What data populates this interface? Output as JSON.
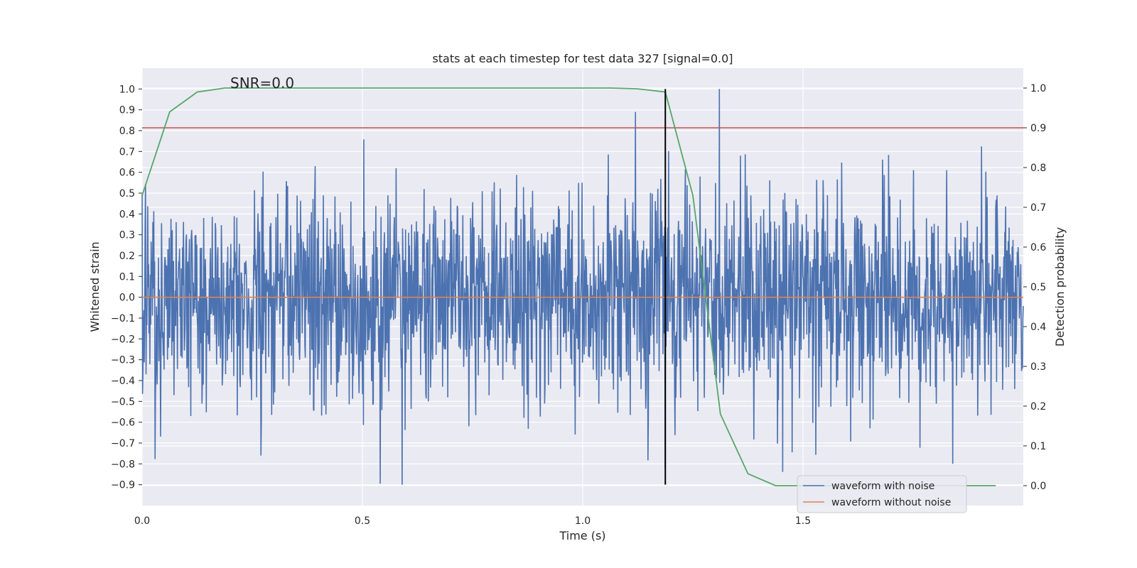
{
  "chart_data": {
    "type": "line",
    "title": "stats at each timestep for test data 327 [signal=0.0]",
    "xlabel": "Time (s)",
    "ylabel_left": "Whitened strain",
    "ylabel_right": "Detection probability",
    "xlim": [
      0.0,
      2.0
    ],
    "ylim_left": [
      -1.0,
      1.1
    ],
    "ylim_right": [
      -0.05,
      1.05
    ],
    "x_ticks": [
      "0.0",
      "0.5",
      "1.0",
      "1.5"
    ],
    "x_tick_values": [
      0.0,
      0.5,
      1.0,
      1.5
    ],
    "y_left_ticks": [
      "1.0",
      "0.9",
      "0.8",
      "0.7",
      "0.6",
      "0.5",
      "0.4",
      "0.3",
      "0.2",
      "0.1",
      "0.0",
      "−0.1",
      "−0.2",
      "−0.3",
      "−0.4",
      "−0.5",
      "−0.6",
      "−0.7",
      "−0.8",
      "−0.9"
    ],
    "y_left_tick_values": [
      1.0,
      0.9,
      0.8,
      0.7,
      0.6,
      0.5,
      0.4,
      0.3,
      0.2,
      0.1,
      0.0,
      -0.1,
      -0.2,
      -0.3,
      -0.4,
      -0.5,
      -0.6,
      -0.7,
      -0.8,
      -0.9
    ],
    "y_right_ticks": [
      "1.0",
      "0.9",
      "0.8",
      "0.7",
      "0.6",
      "0.5",
      "0.4",
      "0.3",
      "0.2",
      "0.1",
      "0.0"
    ],
    "y_right_tick_values": [
      1.0,
      0.9,
      0.8,
      0.7,
      0.6,
      0.5,
      0.4,
      0.3,
      0.2,
      0.1,
      0.0
    ],
    "annotation": "SNR=0.0",
    "annotation_x": 0.2,
    "annotation_y": 1.0,
    "noise_series": {
      "name": "waveform with noise",
      "color": "#4c72b0",
      "n_points": 2048,
      "amplitude_std": 0.25,
      "x_range": [
        0.0,
        2.0
      ],
      "y_clip": [
        -0.9,
        1.0
      ],
      "notable_peaks": [
        {
          "x": 0.59,
          "y": -0.9
        },
        {
          "x": 1.12,
          "y": 0.89
        },
        {
          "x": 1.31,
          "y": 1.0
        },
        {
          "x": 1.84,
          "y": -0.8
        },
        {
          "x": 0.27,
          "y": -0.76
        }
      ]
    },
    "clean_series": {
      "name": "waveform without noise",
      "color": "#dd8452",
      "value": 0.0
    },
    "probability_series": {
      "name": "detection probability",
      "color": "#55a868",
      "x": [
        0.0,
        0.0625,
        0.125,
        0.1875,
        0.25,
        0.3125,
        0.375,
        0.4375,
        0.5,
        0.5625,
        0.625,
        0.6875,
        0.75,
        0.8125,
        0.875,
        0.9375,
        1.0,
        1.0625,
        1.125,
        1.1875,
        1.25,
        1.3125,
        1.375,
        1.4375,
        1.5,
        1.5625,
        1.625,
        1.6875,
        1.75,
        1.8125,
        1.875,
        1.9375
      ],
      "y": [
        0.73,
        0.94,
        0.99,
        1.0,
        1.0,
        1.0,
        1.0,
        1.0,
        1.0,
        1.0,
        1.0,
        1.0,
        1.0,
        1.0,
        1.0,
        1.0,
        1.0,
        1.0,
        0.998,
        0.99,
        0.73,
        0.18,
        0.03,
        0.0,
        0.0,
        0.0,
        0.0,
        0.0,
        0.0,
        0.0,
        0.0,
        0.0
      ]
    },
    "threshold": {
      "value": 0.9,
      "color": "#c44e52"
    },
    "marker_line": {
      "x": 1.1875,
      "y_range": [
        -0.9,
        1.0
      ],
      "color": "#000000"
    },
    "legend": {
      "position": "lower-right",
      "entries": [
        {
          "label": "waveform with noise",
          "color": "#4c72b0"
        },
        {
          "label": "waveform without noise",
          "color": "#dd8452"
        }
      ]
    },
    "style": {
      "background": "#eaeaf2",
      "grid": true,
      "grid_color": "#ffffff"
    }
  }
}
